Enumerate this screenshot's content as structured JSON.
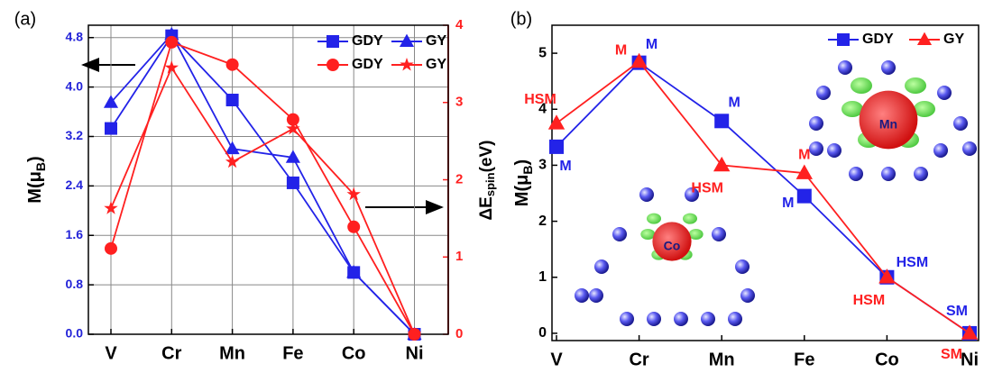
{
  "chart_data": [
    {
      "type": "line",
      "panel_label": "(a)",
      "categories": [
        "V",
        "Cr",
        "Mn",
        "Fe",
        "Co",
        "Ni"
      ],
      "ylabel": [
        "M(μ",
        "B",
        ")"
      ],
      "y2label": [
        "ΔE",
        "spin",
        "(eV)"
      ],
      "ylim": [
        0,
        5
      ],
      "ycolor": "#2323d8",
      "yticks": [
        {
          "value": 0,
          "label": "0.0"
        },
        {
          "value": 0.8,
          "label": "0.8"
        },
        {
          "value": 1.6,
          "label": "1.6"
        },
        {
          "value": 2.4,
          "label": "2.4"
        },
        {
          "value": 3.2,
          "label": "3.2"
        },
        {
          "value": 4,
          "label": "4.0"
        },
        {
          "value": 4.8,
          "label": "4.8"
        }
      ],
      "y2lim": [
        0,
        4
      ],
      "y2ticks": [
        0,
        1,
        2,
        3,
        4
      ],
      "y2color": "#ff2020",
      "grid": true,
      "legend": "upper right",
      "series": [
        {
          "name": "GDY",
          "color": "#2323e8",
          "marker": "square",
          "values": [
            3.33,
            4.83,
            3.79,
            2.45,
            1.0,
            0
          ]
        },
        {
          "name": "GY",
          "color": "#2323e8",
          "marker": "triangle",
          "values": [
            3.75,
            4.85,
            3.0,
            2.86,
            1.0,
            0
          ]
        },
        {
          "name": "GDY",
          "color": "#ff2020",
          "marker": "circle",
          "axis": "y2",
          "values": [
            1.11,
            3.78,
            3.49,
            2.78,
            1.39,
            0
          ]
        },
        {
          "name": "GY",
          "color": "#ff2020",
          "marker": "star",
          "axis": "y2",
          "values": [
            1.63,
            3.45,
            2.23,
            2.66,
            1.81,
            0
          ]
        }
      ]
    },
    {
      "type": "line",
      "panel_label": "(b)",
      "categories": [
        "V",
        "Cr",
        "Mn",
        "Fe",
        "Co",
        "Ni"
      ],
      "ylabel": [
        "M(μ",
        "B",
        ")"
      ],
      "ylim": [
        -0.13,
        5.5
      ],
      "ycolor": "#000000",
      "yticks": [
        0,
        1,
        2,
        3,
        4,
        5
      ],
      "grid": false,
      "legend": "upper right",
      "series": [
        {
          "name": "GDY",
          "color": "#2323e8",
          "marker": "square",
          "values": [
            3.33,
            4.83,
            3.79,
            2.45,
            1.0,
            0
          ],
          "point_labels": [
            "M",
            "M",
            "M",
            "M",
            "HSM",
            "SM"
          ]
        },
        {
          "name": "GY",
          "color": "#ff2020",
          "marker": "triangle",
          "values": [
            3.75,
            4.85,
            3.0,
            2.86,
            1.0,
            0
          ],
          "point_labels": [
            "HSM",
            "M",
            "HSM",
            "M",
            "HSM",
            "SM"
          ]
        }
      ],
      "insets": [
        "Mn",
        "Co"
      ]
    }
  ]
}
